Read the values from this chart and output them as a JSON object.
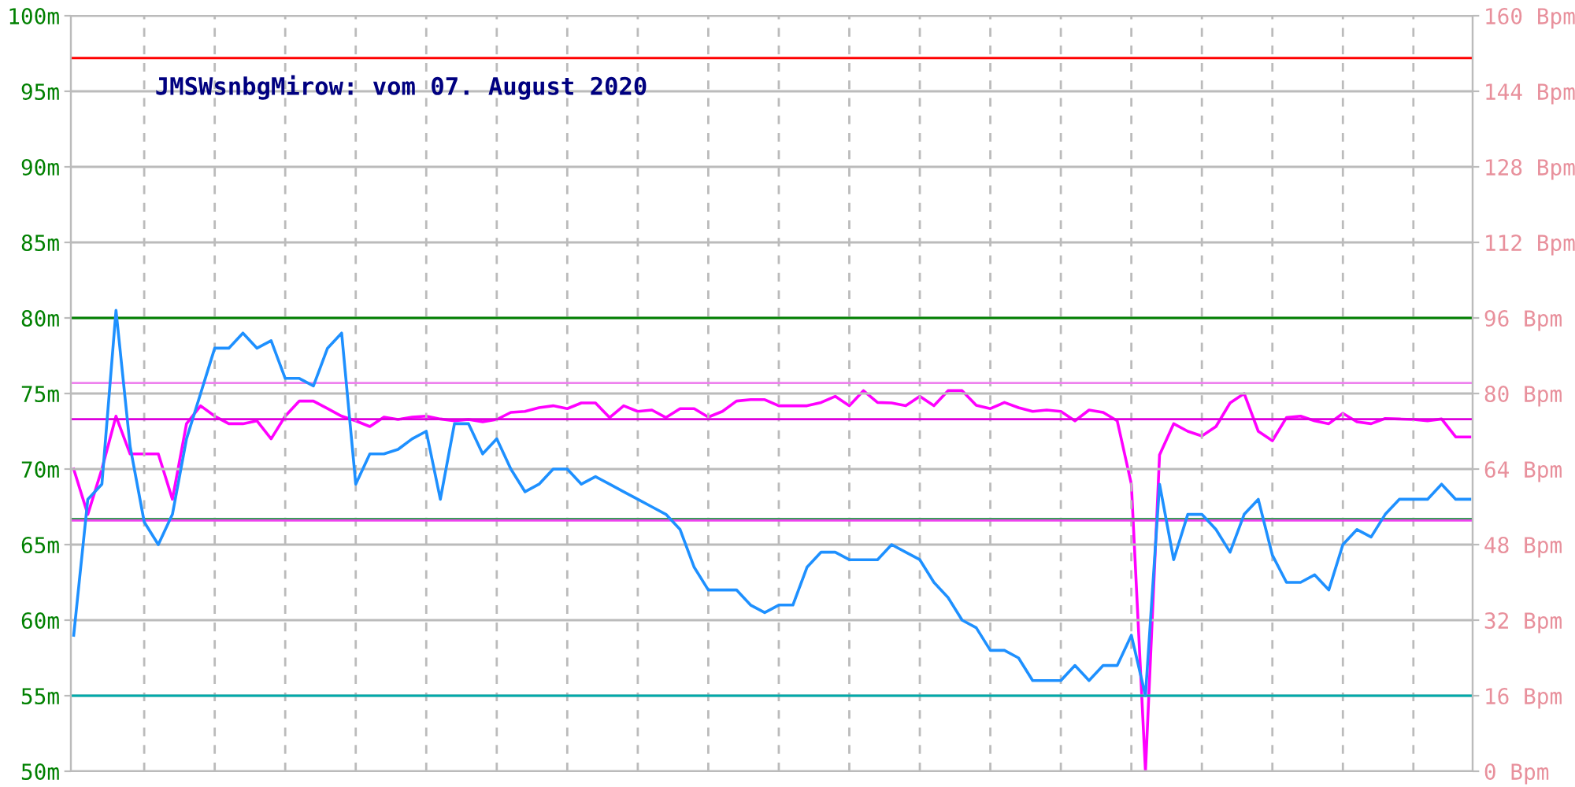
{
  "chart_data": {
    "type": "line",
    "title": "JMSWsnbgMirow: vom 07. August 2020",
    "categories": [
      null,
      null,
      null,
      null,
      null,
      null,
      null,
      null,
      null,
      null,
      null,
      null,
      null,
      null,
      null,
      null,
      null,
      null,
      null,
      null,
      null,
      null,
      null,
      null,
      null,
      null,
      null,
      null,
      null,
      null,
      null,
      null,
      null,
      null,
      null,
      null,
      null,
      null,
      null,
      null,
      null,
      null,
      null,
      null,
      null,
      null,
      null,
      null,
      null,
      null,
      null,
      null,
      null,
      null,
      null,
      null,
      null,
      null,
      null,
      null,
      null,
      null,
      null,
      null,
      null,
      null,
      null,
      null,
      null,
      null,
      null,
      null,
      null,
      null,
      null,
      null,
      null,
      null,
      null,
      null,
      null,
      null,
      null,
      null,
      null,
      null,
      null,
      null,
      null,
      null,
      null,
      null,
      null,
      null,
      null,
      null,
      null,
      null,
      null,
      null
    ],
    "ylim": [
      50,
      100
    ],
    "yticks": [
      {
        "value": 50,
        "label": "50m"
      },
      {
        "value": 55,
        "label": "55m"
      },
      {
        "value": 60,
        "label": "60m"
      },
      {
        "value": 65,
        "label": "65m"
      },
      {
        "value": 70,
        "label": "70m"
      },
      {
        "value": 75,
        "label": "75m"
      },
      {
        "value": 80,
        "label": "80m"
      },
      {
        "value": 85,
        "label": "85m"
      },
      {
        "value": 90,
        "label": "90m"
      },
      {
        "value": 95,
        "label": "95m"
      },
      {
        "value": 100,
        "label": "100m"
      }
    ],
    "y2lim": [
      0,
      160
    ],
    "y2ticks": [
      {
        "value": 0,
        "label": "0 Bpm"
      },
      {
        "value": 16,
        "label": "16 Bpm"
      },
      {
        "value": 32,
        "label": "32 Bpm"
      },
      {
        "value": 48,
        "label": "48 Bpm"
      },
      {
        "value": 64,
        "label": "64 Bpm"
      },
      {
        "value": 80,
        "label": "80 Bpm"
      },
      {
        "value": 96,
        "label": "96 Bpm"
      },
      {
        "value": 112,
        "label": "112 Bpm"
      },
      {
        "value": 128,
        "label": "128 Bpm"
      },
      {
        "value": 144,
        "label": "144 Bpm"
      },
      {
        "value": 160,
        "label": "160 Bpm"
      }
    ],
    "grid": true,
    "ref_lines": [
      {
        "axis": "y",
        "value": 97.2,
        "color": "#ff0000"
      },
      {
        "axis": "y",
        "value": 80,
        "color": "#008000"
      },
      {
        "axis": "y",
        "value": 75.7,
        "color": "#ee82ee"
      },
      {
        "axis": "y",
        "value": 73.3,
        "color": "#dd00dd"
      },
      {
        "axis": "y",
        "value": 66.7,
        "color": "#3c9a5a"
      },
      {
        "axis": "y",
        "value": 66.6,
        "color": "#ee44ee"
      },
      {
        "axis": "y",
        "value": 55,
        "color": "#00aaaa"
      }
    ],
    "series": [
      {
        "color": "#1e90ff",
        "axis": "y",
        "values": [
          59,
          68,
          69,
          80.5,
          71.5,
          66.5,
          65,
          67,
          72,
          75,
          78,
          78,
          79,
          78,
          78.5,
          76,
          76,
          75.5,
          78,
          79,
          69,
          71,
          71,
          71.3,
          72,
          72.5,
          68,
          73,
          73,
          71,
          72,
          70,
          68.5,
          69,
          70,
          70,
          69,
          69.5,
          69,
          68.5,
          68,
          67.5,
          67,
          66,
          63.5,
          62,
          62,
          62,
          61,
          60.5,
          61,
          61,
          63.5,
          64.5,
          64.5,
          64,
          64,
          64,
          65,
          64.5,
          64,
          62.5,
          61.5,
          60,
          59.5,
          58,
          58,
          57.5,
          56,
          56,
          56,
          57,
          56,
          57,
          57,
          59,
          55,
          69,
          64,
          67,
          67,
          66,
          64.5,
          67,
          68,
          64.3,
          62.5,
          62.5,
          63,
          62,
          65,
          66,
          65.5,
          67,
          68,
          68,
          68,
          69,
          68,
          68
        ]
      },
      {
        "color": "#ff00ff",
        "axis": "y2",
        "values": [
          64,
          54.4,
          64,
          75.2,
          67.2,
          67.2,
          67.2,
          57.6,
          73.6,
          77.4,
          75.2,
          73.6,
          73.6,
          74.2,
          70.4,
          75.2,
          78.4,
          78.4,
          76.8,
          75.2,
          74.2,
          73,
          75,
          74.5,
          75,
          75.2,
          74.6,
          74.2,
          74.5,
          74,
          74.5,
          76,
          76.2,
          77,
          77.4,
          76.8,
          78,
          78,
          74.9,
          77.4,
          76.2,
          76.5,
          74.9,
          76.8,
          76.8,
          75,
          76.2,
          78.4,
          78.7,
          78.7,
          77.4,
          77.4,
          77.4,
          78.1,
          79.4,
          77.4,
          80.6,
          78.1,
          78,
          77.4,
          79.4,
          77.4,
          80.6,
          80.6,
          77.5,
          76.8,
          78.1,
          77,
          76.2,
          76.5,
          76.2,
          74.2,
          76.5,
          76,
          74.2,
          60.8,
          0,
          67,
          73.6,
          72,
          71,
          73,
          78,
          80,
          72,
          70,
          74.9,
          75.2,
          74.2,
          73.6,
          75.8,
          74,
          73.6,
          74.7,
          74.6,
          74.5,
          74.2,
          74.6,
          70.8,
          70.8
        ]
      }
    ]
  }
}
